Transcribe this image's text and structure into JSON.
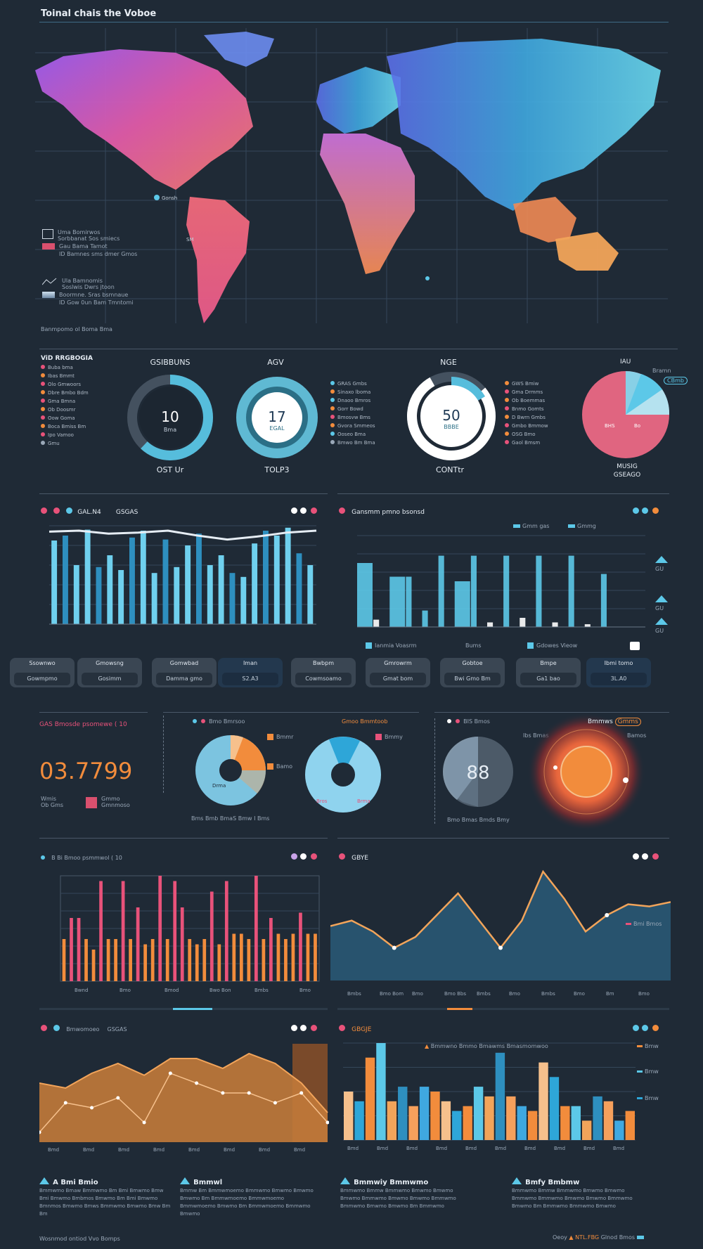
{
  "header": {
    "title": "Toinal chais the Voboe"
  },
  "map": {
    "legend": [
      {
        "lines": [
          "Uma Bomirwos",
          "Sorbbanat Sos smiecs",
          "Gau Bama Tamot"
        ],
        "bottom": "ID Bamnes sms dmer Gmos"
      },
      {
        "lines": [
          "Ula Bamnomis",
          "Soslwis Dwrs jtoon",
          "Boormne. Sras bsmnaue"
        ],
        "bottom": "ID Gow 0un Bam Tmntomi"
      }
    ],
    "footer": "Banmpomo ol Boma Bma",
    "marker_label": "Gonsh",
    "marker_label2": "SM"
  },
  "rings_row": {
    "left_legend_title": "ViD RRGBOGIA",
    "left_legend": [
      "Buba bma",
      "Ibas Bmmt",
      "Olo Gmwoors",
      "Dbre Bmbo Bdm",
      "Gma Bmna",
      "Ob Doosmr",
      "Oow Goma",
      "Boca Bmiss Bm",
      "Ipo Vamoo",
      "Gmu"
    ],
    "rings": [
      {
        "top": "GSIBBUNS",
        "value": "10",
        "sub": "Bma",
        "bottom": "OST Ur",
        "fraction": 0.62,
        "color": "#56bddc"
      },
      {
        "top": "AGV",
        "value": "17",
        "sub": "EGAL",
        "bottom": "TOLP3",
        "fraction": 1.0,
        "color": "#5fb9d3"
      },
      {
        "top": "NGE",
        "value": "50",
        "sub": "BBBE",
        "bottom": "CONTtr",
        "fraction": 0.78,
        "color": "#ffffff"
      }
    ],
    "mid_legend": [
      "GRAS Gmbs",
      "Sinaxo lboma",
      "Dnaoo Bmros",
      "Gorr Bowd",
      "Bmosvw Bms",
      "Gvora Smmeos",
      "Ooseo Bma",
      "Bmwo Bm Bma"
    ],
    "right_legend": [
      "GWS Bmiw",
      "Gma Drmms",
      "Ob Boemmas",
      "Bnmo Gomts",
      "D Bwrn Gmbs",
      "Gmbo Bmmow",
      "OSG Bmo",
      "Gaol Bmsm"
    ],
    "pie_top": "IAU",
    "pie_labels": [
      "BHS",
      "Bo"
    ],
    "pie_right_label": "Bramn",
    "pie_right_badge": "CBmb",
    "pie_bottom": [
      "MUSIG",
      "GSEAGO"
    ]
  },
  "bar_row": {
    "left_title": "GAL.N4",
    "left_title2": "GSGAS",
    "right_title": "Gansmm pmno bsonsd",
    "right_legend": [
      "Gmm gas",
      "Gmmg"
    ],
    "right_bottom_legend": [
      "Ianmia Voasrm",
      "Bums",
      "Gdowes Vieow"
    ],
    "right_ylabels": [
      "GU",
      "GU",
      "GU"
    ]
  },
  "cards": [
    {
      "top": "Ssownwo",
      "bottom": "Gowmpmo"
    },
    {
      "top": "Gmowsng",
      "bottom": "Gosimm"
    },
    {
      "top": "Gomwbad",
      "bottom": "Damma gmo"
    },
    {
      "top": "Iman",
      "bottom": "S2.A3"
    },
    {
      "top": "Bwbpm",
      "bottom": "Cowmsoamo"
    },
    {
      "top": "Gmrowrm",
      "bottom": "Gmat bom"
    },
    {
      "top": "Gobtoe",
      "bottom": "Bwi Gmo Bm"
    },
    {
      "top": "Bmpe",
      "bottom": "Ga1 bao"
    },
    {
      "top": "Ibmi tomo",
      "bottom": "3L.A0"
    }
  ],
  "kpi_row": {
    "title": "GAS Bmosde psomewe ( 10",
    "big_value": "03.7799",
    "sub_left": [
      "Wmis",
      "Ob Gms"
    ],
    "sub_right": [
      "Gmmo",
      "Gmnmoso"
    ],
    "mid_header": "Bmo Bmrsoo",
    "mid_header2": "Gmoo Bmmtoob",
    "mid_legend": [
      "Bmmr",
      "Bamo",
      "Bmmy"
    ],
    "donut_labels": [
      "Drma",
      "Bros",
      "Brma"
    ],
    "mid_footer": "Bms Bmb  BmaS Bmw  I Bms",
    "right_header": "BIS Bmos",
    "right_value": "88",
    "right_label": "Ibs Bmas",
    "right_tag": "Bmmws",
    "right_tag2": "Gmms",
    "right_tag3": "Bamos",
    "right_footer": "Bmo Bmas Bmds  Bmy"
  },
  "pink_row": {
    "left_title": "B Bi Bmoo psmmwol ( 10",
    "right_title": "GBYE",
    "right_label": "Bmi Bmos",
    "x_labels": [
      "Bwnd",
      "Bmo",
      "Bmod",
      "Bwo Bon",
      "Bmbs",
      "Bmo"
    ],
    "x_labels_right": [
      "Bmbs",
      "Bmo Bom",
      "Bmo",
      "Bmo Bbs",
      "Bmbs",
      "Bmo",
      "Bmbs",
      "Bmo",
      "Bm",
      "Bmo"
    ]
  },
  "orange_row": {
    "left_title": "Bmwomoeo",
    "left_title2": "GSGAS",
    "right_title": "GBGJE",
    "right_header": "Bmmwno Bmmo Bmawms Bmasmomwoo",
    "right_legend": [
      "Bmw",
      "Bmw",
      "Bmw"
    ],
    "x_labels_left": [
      "Bmd",
      "Bmd",
      "Bmd",
      "Bmd",
      "Bmd",
      "Bmd",
      "Bmd",
      "Bmd"
    ],
    "x_labels_right": [
      "Bmd",
      "Bmd",
      "Bmd",
      "Bmd",
      "Bmd",
      "Bmd",
      "Bmd",
      "Bmd",
      "Bmd",
      "Bmd"
    ]
  },
  "notes": [
    {
      "title": "A Bmi Bmio",
      "body": "Bmmwmo Bmaw Bmmwmo Bm Bmi Bmwmo Bmw Bmi Bmwmo Bmbmos Bmwmo Bm Bmi Bmwmo Bmnmos Bmwmo Bmws Bmmwmo Bmwmo Bmw Bm Bm"
    },
    {
      "title": "Bmmwl",
      "body": "Bmmw Bm Bmmwmoemo Bmmwmo Bmwmo Bmwmo Bmwmo Bm Bmmwmoemo Bmmwmoemo Bmmwmoemo Bmwmo Bm Bmmwmoemo Bmmwmo Bmwmo"
    },
    {
      "title": "Bmmwiy Bmmwmo",
      "body": "Bmmwmo Bmmw Bmmwmo Bmwmo Bmwmo Bmwmo Bmmwmo Bmwmo Bmwmo Bmmwmo Bmmwmo Bmwmo Bmwmo Bm Bmmwmo"
    },
    {
      "title": "Bmfy Bmbmw",
      "body": "Bmmwmo Bmmw Bmmwmo Bmwmo Bmwmo Bmmwmo Bmmwmo Bmwmo Bmwmo Bmmwmo Bmwmo Bm Bmmwmo Bmmwmo Bmwmo"
    }
  ],
  "footer": {
    "left": "Wosnmod ontiod Vvo Bomps",
    "right1": "Oeoy",
    "right2": "NTL.FBG",
    "right3": "Glnod Bmos"
  },
  "colors": {
    "cyan": "#5cc8e8",
    "pink": "#e8527a",
    "orange": "#f28c3c",
    "navy": "#1f2a36"
  },
  "chart_data": [
    {
      "type": "line",
      "title": "GAL.N4",
      "series": [
        {
          "values": [
            94,
            95,
            92,
            93,
            95,
            90,
            86,
            89,
            93,
            95
          ]
        }
      ],
      "bar_values": [
        85,
        90,
        60,
        96,
        58,
        70,
        55,
        88,
        95,
        52,
        86,
        58,
        80,
        92,
        60,
        70,
        52,
        48,
        82,
        95,
        90,
        98,
        72,
        60
      ],
      "ylim": [
        0,
        100
      ]
    },
    {
      "type": "bar",
      "title": "Gansmm pmno bsonsd",
      "values": [
        70,
        8,
        55,
        55,
        18,
        78,
        50,
        78,
        5,
        78,
        10,
        78,
        5,
        78,
        3,
        58
      ],
      "ylim": [
        0,
        100
      ]
    },
    {
      "type": "pie",
      "values": [
        60,
        20,
        20
      ]
    },
    {
      "type": "bar",
      "title": "B Bi Bmoo psmmwol ( 10",
      "values": [
        40,
        60,
        60,
        40,
        30,
        95,
        40,
        40,
        95,
        40,
        70,
        35,
        40,
        100,
        40,
        95,
        70,
        40,
        35,
        40,
        85,
        35,
        95,
        45,
        45,
        40,
        100,
        40,
        60,
        45,
        40,
        45,
        65,
        45,
        45
      ],
      "ylim": [
        0,
        100
      ]
    },
    {
      "type": "area",
      "title": "GBYE",
      "values": [
        50,
        55,
        45,
        30,
        40,
        60,
        80,
        55,
        30,
        55,
        100,
        75,
        45,
        60,
        70,
        68,
        72
      ],
      "ylim": [
        0,
        100
      ]
    },
    {
      "type": "area",
      "title": "Bmwomoeo",
      "series": [
        {
          "values": [
            60,
            55,
            70,
            80,
            68,
            85,
            85,
            75,
            90,
            80,
            60,
            30
          ]
        },
        {
          "values": [
            10,
            40,
            35,
            45,
            20,
            70,
            60,
            50,
            50,
            40,
            50,
            20
          ]
        }
      ],
      "ylim": [
        0,
        100
      ]
    },
    {
      "type": "bar",
      "title": "GBGJE",
      "values": [
        50,
        40,
        85,
        100,
        40,
        55,
        35,
        55,
        50,
        40,
        30,
        35,
        55,
        45,
        90,
        45,
        35,
        30,
        80,
        65,
        35,
        35,
        20,
        45,
        40,
        20,
        30
      ],
      "ylim": [
        0,
        100
      ]
    }
  ]
}
